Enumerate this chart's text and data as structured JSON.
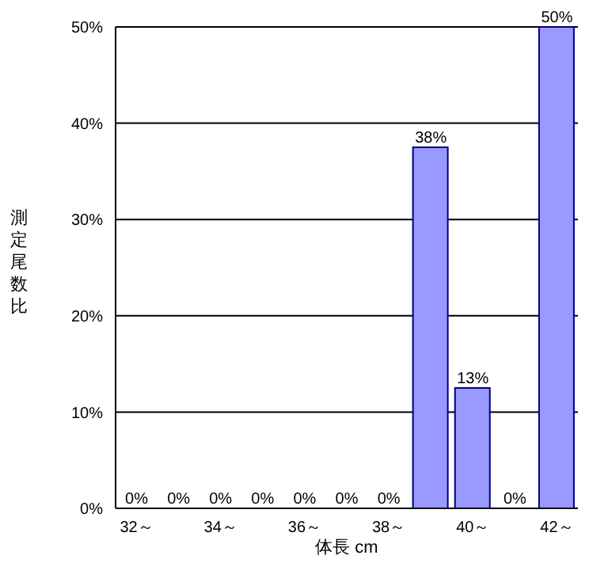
{
  "chart_data": {
    "type": "bar",
    "xlabel": "体長 cm",
    "ylabel": "測定尾数比",
    "categories": [
      "32～",
      null,
      "34～",
      null,
      "36～",
      null,
      "38～",
      null,
      "40～",
      null,
      "42～"
    ],
    "series": [
      {
        "color": "#9999ff",
        "values": [
          0,
          0,
          0,
          0,
          0,
          0,
          0,
          37.5,
          12.5,
          0,
          50
        ],
        "value_labels": [
          "0%",
          "0%",
          "0%",
          "0%",
          "0%",
          "0%",
          "0%",
          "38%",
          "13%",
          "0%",
          "50%"
        ]
      }
    ],
    "ylim": [
      0,
      50
    ],
    "yticks": [
      {
        "value": 0,
        "label": "0%"
      },
      {
        "value": 10,
        "label": "10%"
      },
      {
        "value": 20,
        "label": "20%"
      },
      {
        "value": 30,
        "label": "30%"
      },
      {
        "value": 40,
        "label": "40%"
      },
      {
        "value": 50,
        "label": "50%"
      }
    ],
    "grid": "y",
    "legend": false
  }
}
